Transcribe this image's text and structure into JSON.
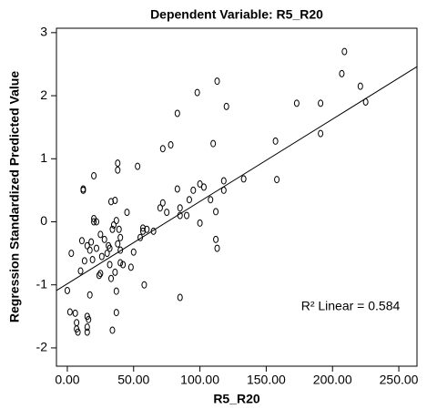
{
  "chart_data": {
    "type": "scatter",
    "title": "Dependent Variable: R5_R20",
    "x_label": "R5_R20",
    "y_label": "Regression Standardized Predicted Value",
    "annotation": "R² Linear = 0.584",
    "color": "#000000",
    "xlim": [
      -8.2,
      263.7
    ],
    "ylim": [
      -2.29,
      3.07
    ],
    "xticks": [
      {
        "value": 0,
        "label": "0.00"
      },
      {
        "value": 50,
        "label": "50.00"
      },
      {
        "value": 100,
        "label": "100.00"
      },
      {
        "value": 150,
        "label": "150.00"
      },
      {
        "value": 200,
        "label": "200.00"
      },
      {
        "value": 250,
        "label": "250.00"
      }
    ],
    "yticks": [
      -2,
      -1,
      0,
      1,
      2,
      3
    ],
    "fit_line": {
      "x": [
        -8.2,
        263.7
      ],
      "y": [
        -1.09,
        2.46
      ]
    },
    "x": [
      0,
      3,
      2,
      6,
      7,
      7,
      8,
      10,
      11,
      12,
      12,
      13,
      15,
      15,
      16,
      15,
      15,
      17,
      17,
      18,
      19,
      20,
      20,
      20,
      22,
      22,
      24,
      25,
      25,
      26,
      28,
      30,
      31,
      32,
      32,
      33,
      33,
      34,
      34,
      35,
      36,
      36,
      37,
      37,
      37,
      38,
      38,
      38,
      39,
      40,
      40,
      40,
      42,
      45,
      48,
      50,
      53,
      55,
      57,
      57,
      58,
      60,
      65,
      70,
      72,
      72,
      75,
      78,
      83,
      83,
      85,
      85,
      85,
      90,
      92,
      95,
      98,
      100,
      100,
      103,
      108,
      110,
      112,
      112,
      113,
      113,
      118,
      118,
      120,
      133,
      157,
      158,
      173,
      191,
      191,
      207,
      209,
      221,
      225
    ],
    "y": [
      -1.09,
      -0.5,
      -1.43,
      -1.45,
      -1.6,
      -1.7,
      -1.75,
      -0.78,
      -0.3,
      0.52,
      0.5,
      -0.62,
      -0.38,
      -1.5,
      -1.55,
      -1.67,
      -1.75,
      -0.45,
      -1.16,
      -0.32,
      -0.6,
      0.0,
      0.05,
      0.73,
      -0.42,
      0.0,
      -0.85,
      -0.82,
      -0.2,
      -0.55,
      -0.28,
      -0.5,
      -0.38,
      -0.42,
      -0.68,
      0.32,
      -0.9,
      -0.12,
      -1.72,
      -0.05,
      -0.8,
      0.34,
      -1.44,
      -1.1,
      0.02,
      0.82,
      0.93,
      -0.35,
      -0.12,
      -0.25,
      -0.45,
      -0.65,
      -0.68,
      0.15,
      -0.72,
      -0.48,
      0.88,
      -0.25,
      -0.1,
      -0.15,
      -1.0,
      -0.12,
      -0.15,
      0.22,
      0.3,
      1.16,
      0.15,
      1.22,
      1.72,
      0.52,
      0.1,
      0.22,
      -1.2,
      0.1,
      0.35,
      0.5,
      2.05,
      -0.02,
      0.6,
      0.55,
      0.35,
      1.24,
      0.16,
      -0.28,
      -0.42,
      2.23,
      0.65,
      0.5,
      1.83,
      0.68,
      1.28,
      0.67,
      1.88,
      1.88,
      1.4,
      2.35,
      2.7,
      2.15,
      1.9
    ]
  }
}
